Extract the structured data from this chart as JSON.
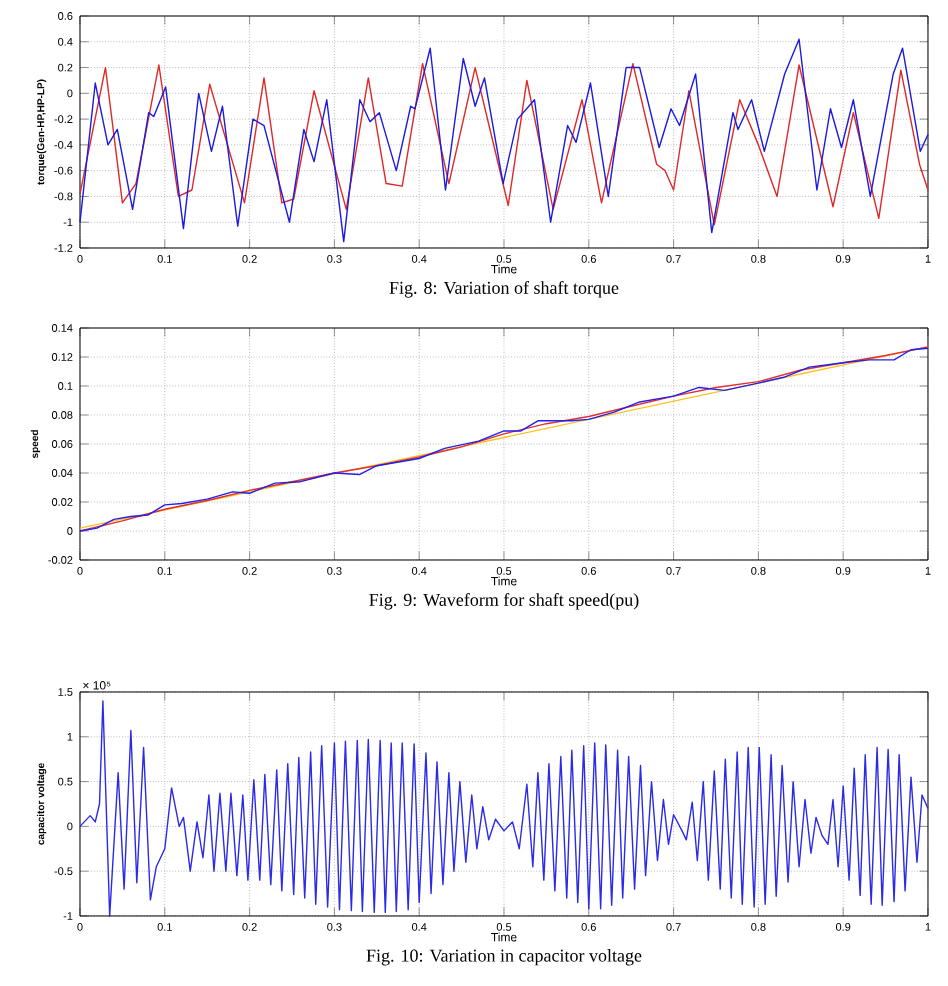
{
  "chart_data": [
    {
      "type": "line",
      "title": "Fig. 8: Variation of shaft torque",
      "xlabel": "Time",
      "ylabel": "torque(Gen-HP,HP-LP)",
      "xlim": [
        0,
        1
      ],
      "ylim": [
        -1.2,
        0.6
      ],
      "xticks": [
        0,
        0.1,
        0.2,
        0.3,
        0.4,
        0.5,
        0.6,
        0.7,
        0.8,
        0.9,
        1
      ],
      "yticks": [
        -1.2,
        -1,
        -0.8,
        -0.6,
        -0.4,
        -0.2,
        0,
        0.2,
        0.4,
        0.6
      ],
      "grid": true,
      "series": [
        {
          "color": "#e02828",
          "x": [
            0,
            0.03,
            0.05,
            0.066,
            0.093,
            0.116,
            0.132,
            0.153,
            0.194,
            0.217,
            0.238,
            0.252,
            0.276,
            0.314,
            0.34,
            0.361,
            0.38,
            0.404,
            0.435,
            0.466,
            0.505,
            0.527,
            0.558,
            0.592,
            0.615,
            0.652,
            0.68,
            0.69,
            0.7,
            0.718,
            0.748,
            0.778,
            0.8,
            0.822,
            0.848,
            0.888,
            0.912,
            0.942,
            0.968,
            0.99,
            1
          ],
          "values": [
            -0.78,
            0.2,
            -0.85,
            -0.7,
            0.22,
            -0.8,
            -0.75,
            0.07,
            -0.85,
            0.12,
            -0.85,
            -0.82,
            0.02,
            -0.9,
            0.12,
            -0.7,
            -0.72,
            0.23,
            -0.7,
            0.2,
            -0.87,
            0.1,
            -0.9,
            -0.05,
            -0.85,
            0.23,
            -0.55,
            -0.6,
            -0.75,
            0.02,
            -1.02,
            -0.05,
            -0.4,
            -0.8,
            0.22,
            -0.88,
            -0.15,
            -0.97,
            0.18,
            -0.55,
            -0.75
          ]
        },
        {
          "color": "#1a1ae0",
          "x": [
            0,
            0.018,
            0.033,
            0.044,
            0.062,
            0.081,
            0.087,
            0.101,
            0.122,
            0.14,
            0.155,
            0.168,
            0.186,
            0.204,
            0.217,
            0.247,
            0.264,
            0.276,
            0.291,
            0.311,
            0.33,
            0.342,
            0.353,
            0.373,
            0.39,
            0.395,
            0.413,
            0.431,
            0.452,
            0.466,
            0.477,
            0.499,
            0.516,
            0.536,
            0.555,
            0.575,
            0.585,
            0.602,
            0.623,
            0.644,
            0.66,
            0.683,
            0.697,
            0.707,
            0.726,
            0.745,
            0.77,
            0.776,
            0.792,
            0.807,
            0.831,
            0.848,
            0.869,
            0.885,
            0.898,
            0.912,
            0.932,
            0.959,
            0.97,
            0.991,
            1
          ],
          "values": [
            -1.0,
            0.08,
            -0.4,
            -0.28,
            -0.9,
            -0.15,
            -0.18,
            0.05,
            -1.05,
            0.0,
            -0.45,
            -0.1,
            -1.03,
            -0.2,
            -0.25,
            -1.0,
            -0.28,
            -0.53,
            -0.05,
            -1.15,
            -0.05,
            -0.22,
            -0.15,
            -0.6,
            -0.1,
            -0.12,
            0.35,
            -0.75,
            0.27,
            -0.1,
            0.12,
            -0.7,
            -0.2,
            -0.05,
            -1.0,
            -0.25,
            -0.38,
            0.08,
            -0.8,
            0.2,
            0.2,
            -0.42,
            -0.12,
            -0.25,
            0.15,
            -1.08,
            -0.15,
            -0.28,
            -0.05,
            -0.45,
            0.15,
            0.42,
            -0.75,
            -0.12,
            -0.42,
            -0.05,
            -0.8,
            0.15,
            0.35,
            -0.45,
            -0.32
          ]
        }
      ]
    },
    {
      "type": "line",
      "title": "Fig. 9: Waveform for shaft speed(pu)",
      "xlabel": "Time",
      "ylabel": "speed",
      "xlim": [
        0,
        1
      ],
      "ylim": [
        -0.02,
        0.14
      ],
      "xticks": [
        0,
        0.1,
        0.2,
        0.3,
        0.4,
        0.5,
        0.6,
        0.7,
        0.8,
        0.9,
        1
      ],
      "yticks": [
        -0.02,
        0,
        0.02,
        0.04,
        0.06,
        0.08,
        0.1,
        0.12,
        0.14
      ],
      "grid": true,
      "series": [
        {
          "color": "#ffc020",
          "x": [
            0,
            1
          ],
          "values": [
            0.002,
            0.127
          ]
        },
        {
          "color": "#e03030",
          "x": [
            0,
            0.05,
            0.1,
            0.15,
            0.2,
            0.25,
            0.3,
            0.35,
            0.4,
            0.45,
            0.5,
            0.55,
            0.6,
            0.65,
            0.7,
            0.75,
            0.8,
            0.85,
            0.9,
            0.95,
            1
          ],
          "values": [
            0,
            0.007,
            0.015,
            0.021,
            0.028,
            0.034,
            0.04,
            0.045,
            0.051,
            0.058,
            0.067,
            0.074,
            0.079,
            0.086,
            0.093,
            0.099,
            0.103,
            0.111,
            0.116,
            0.121,
            0.127
          ]
        },
        {
          "color": "#2020f0",
          "x": [
            0,
            0.02,
            0.04,
            0.06,
            0.08,
            0.1,
            0.12,
            0.15,
            0.18,
            0.2,
            0.23,
            0.26,
            0.3,
            0.33,
            0.35,
            0.4,
            0.43,
            0.47,
            0.5,
            0.52,
            0.54,
            0.58,
            0.6,
            0.63,
            0.66,
            0.7,
            0.73,
            0.76,
            0.8,
            0.83,
            0.86,
            0.9,
            0.93,
            0.96,
            0.98,
            1
          ],
          "values": [
            0,
            0.002,
            0.008,
            0.01,
            0.011,
            0.018,
            0.019,
            0.022,
            0.027,
            0.026,
            0.033,
            0.034,
            0.04,
            0.039,
            0.045,
            0.05,
            0.057,
            0.062,
            0.069,
            0.069,
            0.076,
            0.076,
            0.077,
            0.082,
            0.089,
            0.093,
            0.099,
            0.097,
            0.102,
            0.106,
            0.113,
            0.116,
            0.118,
            0.118,
            0.125,
            0.126
          ]
        }
      ]
    },
    {
      "type": "line",
      "title": "Fig. 10: Variation in capacitor voltage",
      "xlabel": "Time",
      "ylabel": "capacitor voltage",
      "annotations": [
        "× 10⁵"
      ],
      "xlim": [
        0,
        1
      ],
      "ylim": [
        -1,
        1.5
      ],
      "xticks": [
        0,
        0.1,
        0.2,
        0.3,
        0.4,
        0.5,
        0.6,
        0.7,
        0.8,
        0.9,
        1
      ],
      "yticks": [
        -1,
        -0.5,
        0,
        0.5,
        1,
        1.5
      ],
      "grid": true,
      "series": [
        {
          "color": "#2a2ae8",
          "x": [
            0,
            0.012,
            0.018,
            0.023,
            0.027,
            0.035,
            0.045,
            0.052,
            0.06,
            0.067,
            0.075,
            0.083,
            0.09,
            0.1,
            0.108,
            0.117,
            0.122,
            0.13,
            0.138,
            0.145,
            0.152,
            0.158,
            0.165,
            0.172,
            0.178,
            0.185,
            0.192,
            0.198,
            0.205,
            0.212,
            0.218,
            0.225,
            0.232,
            0.238,
            0.245,
            0.252,
            0.258,
            0.265,
            0.272,
            0.278,
            0.285,
            0.292,
            0.3,
            0.306,
            0.313,
            0.32,
            0.327,
            0.333,
            0.34,
            0.347,
            0.354,
            0.36,
            0.367,
            0.373,
            0.38,
            0.387,
            0.394,
            0.4,
            0.408,
            0.414,
            0.421,
            0.428,
            0.435,
            0.441,
            0.448,
            0.455,
            0.462,
            0.468,
            0.475,
            0.482,
            0.49,
            0.5,
            0.51,
            0.518,
            0.527,
            0.534,
            0.54,
            0.547,
            0.553,
            0.56,
            0.567,
            0.574,
            0.58,
            0.587,
            0.594,
            0.6,
            0.607,
            0.614,
            0.62,
            0.627,
            0.634,
            0.64,
            0.647,
            0.654,
            0.661,
            0.667,
            0.674,
            0.681,
            0.688,
            0.694,
            0.7,
            0.71,
            0.715,
            0.722,
            0.728,
            0.735,
            0.741,
            0.748,
            0.755,
            0.761,
            0.768,
            0.775,
            0.781,
            0.788,
            0.795,
            0.801,
            0.808,
            0.815,
            0.821,
            0.828,
            0.835,
            0.841,
            0.848,
            0.855,
            0.862,
            0.868,
            0.875,
            0.882,
            0.888,
            0.894,
            0.9,
            0.907,
            0.913,
            0.92,
            0.926,
            0.933,
            0.94,
            0.946,
            0.953,
            0.96,
            0.966,
            0.973,
            0.98,
            0.987,
            0.993,
            1
          ],
          "values": [
            0,
            0.12,
            0.05,
            0.25,
            1.4,
            -1.0,
            0.6,
            -0.7,
            1.07,
            -0.63,
            0.88,
            -0.82,
            -0.45,
            -0.25,
            0.43,
            0.0,
            0.1,
            -0.5,
            0.05,
            -0.35,
            0.35,
            -0.5,
            0.37,
            -0.5,
            0.37,
            -0.55,
            0.35,
            -0.6,
            0.52,
            -0.6,
            0.58,
            -0.65,
            0.63,
            -0.72,
            0.7,
            -0.76,
            0.77,
            -0.8,
            0.83,
            -0.87,
            0.9,
            -0.9,
            0.93,
            -0.93,
            0.95,
            -0.94,
            0.96,
            -0.95,
            0.97,
            -0.96,
            0.96,
            -0.96,
            0.93,
            -0.95,
            0.93,
            -0.93,
            0.92,
            -0.85,
            0.82,
            -0.75,
            0.72,
            -0.65,
            0.6,
            -0.5,
            0.5,
            -0.4,
            0.35,
            -0.25,
            0.22,
            -0.15,
            0.08,
            -0.05,
            0.05,
            -0.25,
            0.47,
            -0.45,
            0.6,
            -0.6,
            0.7,
            -0.72,
            0.78,
            -0.8,
            0.85,
            -0.85,
            0.9,
            -0.92,
            0.93,
            -0.92,
            0.91,
            -0.88,
            0.85,
            -0.8,
            0.78,
            -0.7,
            0.68,
            -0.55,
            0.5,
            -0.38,
            0.3,
            -0.2,
            0.13,
            -0.05,
            -0.15,
            0.27,
            -0.38,
            0.5,
            -0.6,
            0.62,
            -0.7,
            0.75,
            -0.8,
            0.83,
            -0.87,
            0.88,
            -0.9,
            0.88,
            -0.87,
            0.8,
            -0.78,
            0.68,
            -0.62,
            0.5,
            -0.45,
            0.3,
            -0.3,
            0.1,
            -0.1,
            -0.2,
            0.3,
            -0.45,
            0.45,
            -0.6,
            0.65,
            -0.77,
            0.8,
            -0.87,
            0.88,
            -0.88,
            0.86,
            -0.84,
            0.8,
            -0.72,
            0.55,
            -0.4,
            0.35,
            0.2
          ]
        }
      ]
    }
  ]
}
